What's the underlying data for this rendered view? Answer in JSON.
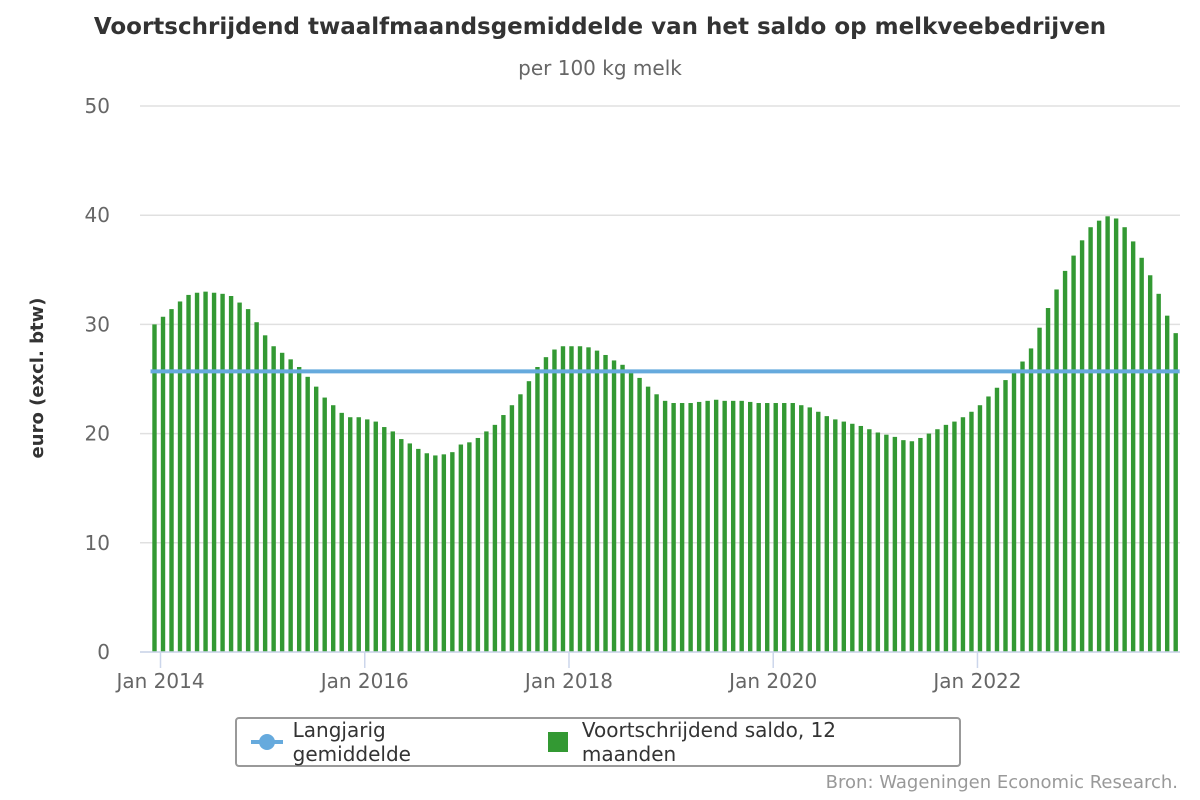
{
  "chart_data": {
    "type": "bar",
    "title": "Voortschrijdend twaalfmaandsgemiddelde van het saldo op melkveebedrijven",
    "subtitle": "per 100 kg melk",
    "ylabel": "euro (excl. btw)",
    "xlabel": "",
    "ylim": [
      0,
      50
    ],
    "yticks": [
      "0",
      "10",
      "20",
      "30",
      "40",
      "50"
    ],
    "xtick_labels": [
      {
        "label": "Jan 2014",
        "index": 0
      },
      {
        "label": "Jan 2016",
        "index": 24
      },
      {
        "label": "Jan 2018",
        "index": 48
      },
      {
        "label": "Jan 2020",
        "index": 72
      },
      {
        "label": "Jan 2022",
        "index": 96
      }
    ],
    "grid": true,
    "legend_placement": "bottom-center",
    "series": [
      {
        "name": "Voortschrijdend saldo, 12 maanden",
        "type": "bar",
        "color": "#339933",
        "values": [
          30.0,
          30.7,
          31.4,
          32.1,
          32.7,
          32.9,
          33.0,
          32.9,
          32.8,
          32.6,
          32.0,
          31.4,
          30.2,
          29.0,
          28.0,
          27.4,
          26.8,
          26.1,
          25.2,
          24.3,
          23.3,
          22.6,
          21.9,
          21.5,
          21.5,
          21.3,
          21.1,
          20.6,
          20.2,
          19.5,
          19.1,
          18.6,
          18.2,
          18.0,
          18.1,
          18.3,
          19.0,
          19.2,
          19.6,
          20.2,
          20.8,
          21.7,
          22.6,
          23.6,
          24.8,
          26.1,
          27.0,
          27.7,
          28.0,
          28.0,
          28.0,
          27.9,
          27.6,
          27.2,
          26.7,
          26.3,
          25.8,
          25.1,
          24.3,
          23.6,
          23.0,
          22.8,
          22.8,
          22.8,
          22.9,
          23.0,
          23.1,
          23.0,
          23.0,
          23.0,
          22.9,
          22.8,
          22.8,
          22.8,
          22.8,
          22.8,
          22.6,
          22.4,
          22.0,
          21.6,
          21.3,
          21.1,
          20.9,
          20.7,
          20.4,
          20.1,
          19.9,
          19.7,
          19.4,
          19.3,
          19.6,
          20.0,
          20.4,
          20.8,
          21.1,
          21.5,
          22.0,
          22.6,
          23.4,
          24.2,
          24.9,
          25.6,
          26.6,
          27.8,
          29.7,
          31.5,
          33.2,
          34.9,
          36.3,
          37.7,
          38.9,
          39.5,
          39.9,
          39.7,
          38.9,
          37.6,
          36.1,
          34.5,
          32.8,
          30.8,
          29.2
        ]
      },
      {
        "name": "Langjarig gemiddelde",
        "type": "line",
        "color": "#66aadd",
        "value": 25.7
      }
    ]
  },
  "credits": "Bron: Wageningen Economic Research."
}
